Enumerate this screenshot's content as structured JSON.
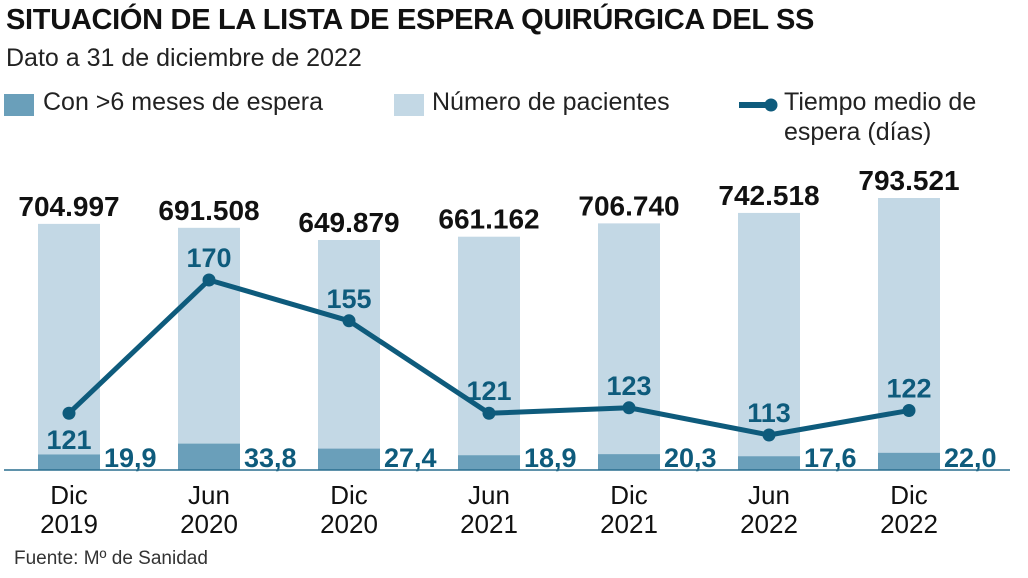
{
  "header": {
    "title": "SITUACIÓN DE LA LISTA DE ESPERA QUIRÚRGICA DEL SS",
    "subtitle": "Dato a 31 de diciembre de 2022"
  },
  "legend": {
    "items": [
      {
        "label": "Con >6 meses de espera",
        "color": "#6a9fba"
      },
      {
        "label": "Número de pacientes",
        "color": "#c3d8e5"
      },
      {
        "label_line1": "Tiempo medio de",
        "label_line2": "espera (días)",
        "color": "#0e5b7c"
      }
    ]
  },
  "footer": {
    "source": "Fuente: Mº de Sanidad"
  },
  "chart_data": {
    "type": "bar",
    "title": "SITUACIÓN DE LA LISTA DE ESPERA QUIRÚRGICA DEL SS",
    "subtitle": "Dato a 31 de diciembre de 2022",
    "categories": [
      {
        "line1": "Dic",
        "line2": "2019"
      },
      {
        "line1": "Jun",
        "line2": "2020"
      },
      {
        "line1": "Dic",
        "line2": "2020"
      },
      {
        "line1": "Jun",
        "line2": "2021"
      },
      {
        "line1": "Dic",
        "line2": "2021"
      },
      {
        "line1": "Jun",
        "line2": "2022"
      },
      {
        "line1": "Dic",
        "line2": "2022"
      }
    ],
    "series": [
      {
        "name": "Número de pacientes",
        "type": "bar",
        "color": "#c3d8e5",
        "values": [
          704997,
          691508,
          649879,
          661162,
          706740,
          742518,
          793521
        ],
        "labels": [
          "704.997",
          "691.508",
          "649.879",
          "661.162",
          "706.740",
          "742.518",
          "793.521"
        ]
      },
      {
        "name": "Con >6 meses de espera",
        "type": "bar",
        "unit": "%",
        "color": "#6a9fba",
        "values": [
          19.9,
          33.8,
          27.4,
          18.9,
          20.3,
          17.6,
          22.0
        ],
        "labels": [
          "19,9",
          "33,8",
          "27,4",
          "18,9",
          "20,3",
          "17,6",
          "22,0"
        ]
      },
      {
        "name": "Tiempo medio de espera (días)",
        "type": "line",
        "color": "#0e5b7c",
        "values": [
          121,
          170,
          155,
          121,
          123,
          113,
          122
        ],
        "labels": [
          "121",
          "170",
          "155",
          "121",
          "123",
          "113",
          "122"
        ]
      }
    ],
    "xlabel": "",
    "ylabel": "",
    "grid": false,
    "legend_position": "top"
  }
}
